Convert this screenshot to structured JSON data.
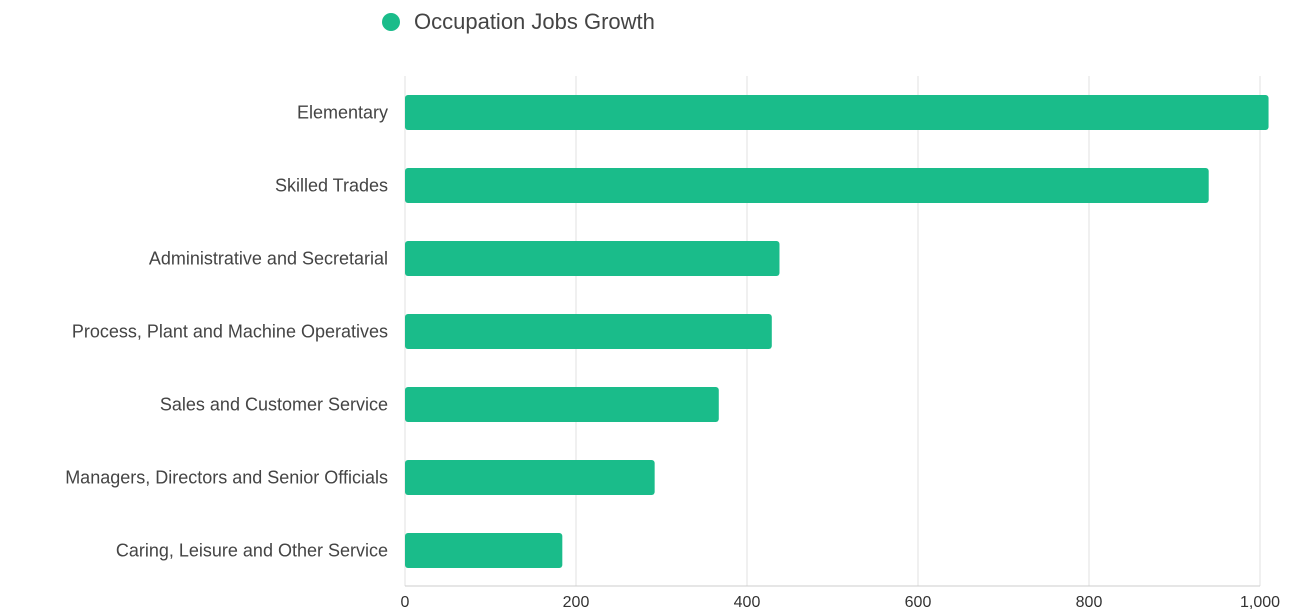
{
  "chart_data": {
    "type": "bar",
    "orientation": "horizontal",
    "categories": [
      "Elementary",
      "Skilled Trades",
      "Administrative and Secretarial",
      "Process, Plant and Machine Operatives",
      "Sales and Customer Service",
      "Managers, Directors and Senior Officials",
      "Caring, Leisure and Other Service"
    ],
    "series": [
      {
        "name": "Occupation Jobs Growth",
        "color": "#1abc8a",
        "values": [
          1010,
          940,
          438,
          429,
          367,
          292,
          184
        ]
      }
    ],
    "xlim": [
      0,
      1000
    ],
    "xticks": [
      0,
      200,
      400,
      600,
      800,
      1000
    ],
    "xtick_labels": [
      "0",
      "200",
      "400",
      "600",
      "800",
      "1,000"
    ],
    "grid": true,
    "legend_position": "top-center",
    "title": "",
    "xlabel": "",
    "ylabel": ""
  }
}
